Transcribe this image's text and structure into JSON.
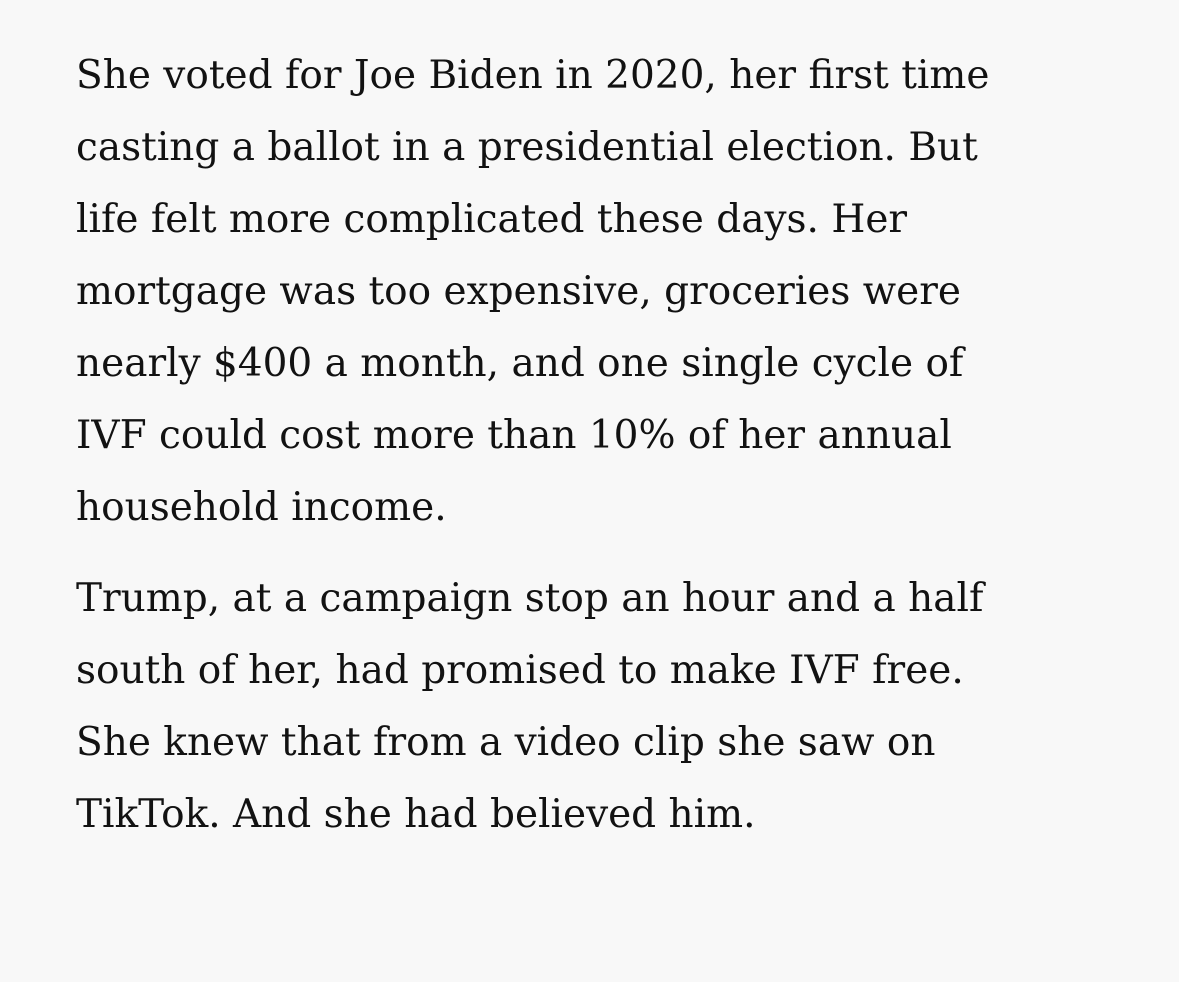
{
  "article": {
    "paragraphs": [
      {
        "lines": [
          "She voted for Joe Biden in 2020, her first time",
          "casting a ballot in a presidential election. But",
          "life felt more complicated these days. Her",
          "mortgage was too expensive, groceries were",
          "nearly $400 a month, and one single cycle of",
          "IVF could cost more than 10% of her annual",
          "household income."
        ]
      },
      {
        "lines": [
          "Trump, at a campaign stop an hour and a half",
          "south of her, had promised to make IVF free.",
          "She knew that from a video clip she saw on",
          "TikTok. And she had believed him."
        ]
      }
    ]
  }
}
